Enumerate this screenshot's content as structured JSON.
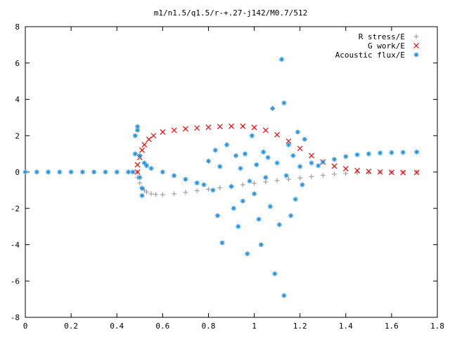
{
  "chart_data": {
    "type": "scatter",
    "title": "m1/n1.5/q1.5/r-+.27-j142/M0.7/512",
    "xlabel": "",
    "ylabel": "",
    "xlim": [
      0,
      1.8
    ],
    "ylim": [
      -8,
      8
    ],
    "x_ticks": [
      "0",
      "0.2",
      "0.4",
      "0.6",
      "0.8",
      "1",
      "1.2",
      "1.4",
      "1.6",
      "1.8"
    ],
    "y_ticks": [
      "8",
      "6",
      "4",
      "2",
      "0",
      "-2",
      "-4",
      "-6",
      "-8"
    ],
    "legend_position": "top-right",
    "grid": false,
    "series": [
      {
        "name": "R stress/E",
        "marker": "plus",
        "color": "#a0a0a0",
        "points": [
          [
            0.49,
            0.0
          ],
          [
            0.49,
            -0.3
          ],
          [
            0.5,
            -0.6
          ],
          [
            0.51,
            -0.85
          ],
          [
            0.52,
            -1.0
          ],
          [
            0.53,
            -1.1
          ],
          [
            0.55,
            -1.2
          ],
          [
            0.57,
            -1.24
          ],
          [
            0.6,
            -1.25
          ],
          [
            0.65,
            -1.2
          ],
          [
            0.7,
            -1.12
          ],
          [
            0.75,
            -1.03
          ],
          [
            0.8,
            -0.95
          ],
          [
            0.85,
            -0.87
          ],
          [
            0.9,
            -0.78
          ],
          [
            0.95,
            -0.7
          ],
          [
            1.0,
            -0.62
          ],
          [
            1.05,
            -0.54
          ],
          [
            1.1,
            -0.47
          ],
          [
            1.15,
            -0.4
          ],
          [
            1.2,
            -0.33
          ],
          [
            1.25,
            -0.25
          ],
          [
            1.3,
            -0.18
          ],
          [
            1.35,
            -0.12
          ],
          [
            1.4,
            -0.08
          ],
          [
            1.45,
            -0.04
          ],
          [
            1.5,
            -0.02
          ],
          [
            1.55,
            -0.01
          ],
          [
            1.6,
            0.0
          ],
          [
            1.65,
            0.0
          ],
          [
            1.71,
            0.0
          ]
        ]
      },
      {
        "name": "G work/E",
        "marker": "cross",
        "color": "#ff0000",
        "points": [
          [
            0.49,
            0.0
          ],
          [
            0.49,
            0.4
          ],
          [
            0.5,
            0.8
          ],
          [
            0.51,
            1.2
          ],
          [
            0.52,
            1.5
          ],
          [
            0.54,
            1.8
          ],
          [
            0.56,
            2.0
          ],
          [
            0.6,
            2.2
          ],
          [
            0.65,
            2.3
          ],
          [
            0.7,
            2.38
          ],
          [
            0.75,
            2.42
          ],
          [
            0.8,
            2.46
          ],
          [
            0.85,
            2.5
          ],
          [
            0.9,
            2.52
          ],
          [
            0.95,
            2.52
          ],
          [
            1.0,
            2.45
          ],
          [
            1.05,
            2.3
          ],
          [
            1.1,
            2.05
          ],
          [
            1.15,
            1.7
          ],
          [
            1.2,
            1.3
          ],
          [
            1.25,
            0.9
          ],
          [
            1.3,
            0.55
          ],
          [
            1.35,
            0.32
          ],
          [
            1.4,
            0.18
          ],
          [
            1.45,
            0.08
          ],
          [
            1.5,
            0.03
          ],
          [
            1.55,
            0.0
          ],
          [
            1.6,
            -0.02
          ],
          [
            1.65,
            -0.03
          ],
          [
            1.71,
            -0.02
          ]
        ]
      },
      {
        "name": "Acoustic flux/E",
        "marker": "star",
        "color": "#1e90e6",
        "points": [
          [
            0.0,
            0.0
          ],
          [
            0.05,
            0.0
          ],
          [
            0.1,
            0.0
          ],
          [
            0.15,
            0.0
          ],
          [
            0.2,
            0.0
          ],
          [
            0.25,
            0.0
          ],
          [
            0.3,
            0.0
          ],
          [
            0.35,
            0.0
          ],
          [
            0.4,
            0.0
          ],
          [
            0.45,
            0.0
          ],
          [
            0.47,
            0.0
          ],
          [
            0.48,
            1.0
          ],
          [
            0.48,
            2.0
          ],
          [
            0.49,
            2.3
          ],
          [
            0.49,
            2.5
          ],
          [
            0.5,
            0.9
          ],
          [
            0.5,
            -0.3
          ],
          [
            0.51,
            -0.9
          ],
          [
            0.51,
            -1.3
          ],
          [
            0.52,
            0.5
          ],
          [
            0.53,
            0.35
          ],
          [
            0.55,
            0.2
          ],
          [
            0.6,
            0.0
          ],
          [
            0.65,
            -0.2
          ],
          [
            0.7,
            -0.4
          ],
          [
            0.75,
            -0.6
          ],
          [
            0.78,
            -0.7
          ],
          [
            0.8,
            0.6
          ],
          [
            0.82,
            -1.0
          ],
          [
            0.83,
            1.2
          ],
          [
            0.84,
            -2.4
          ],
          [
            0.85,
            0.3
          ],
          [
            0.86,
            -3.9
          ],
          [
            0.88,
            1.5
          ],
          [
            0.9,
            -0.8
          ],
          [
            0.91,
            -2.0
          ],
          [
            0.92,
            0.9
          ],
          [
            0.93,
            -3.0
          ],
          [
            0.94,
            0.2
          ],
          [
            0.95,
            -1.6
          ],
          [
            0.96,
            1.0
          ],
          [
            0.97,
            -4.5
          ],
          [
            0.98,
            -0.5
          ],
          [
            0.99,
            2.0
          ],
          [
            1.0,
            -1.2
          ],
          [
            1.01,
            0.4
          ],
          [
            1.02,
            -2.6
          ],
          [
            1.03,
            -4.0
          ],
          [
            1.04,
            1.1
          ],
          [
            1.05,
            -0.3
          ],
          [
            1.06,
            0.8
          ],
          [
            1.07,
            -1.9
          ],
          [
            1.08,
            3.5
          ],
          [
            1.09,
            -5.6
          ],
          [
            1.1,
            0.5
          ],
          [
            1.11,
            -2.9
          ],
          [
            1.12,
            6.2
          ],
          [
            1.13,
            -6.8
          ],
          [
            1.13,
            3.8
          ],
          [
            1.14,
            -0.2
          ],
          [
            1.15,
            1.5
          ],
          [
            1.16,
            -2.4
          ],
          [
            1.17,
            0.9
          ],
          [
            1.18,
            -1.5
          ],
          [
            1.19,
            2.2
          ],
          [
            1.2,
            0.3
          ],
          [
            1.21,
            -0.7
          ],
          [
            1.22,
            1.8
          ],
          [
            1.25,
            0.5
          ],
          [
            1.28,
            0.35
          ],
          [
            1.3,
            0.55
          ],
          [
            1.35,
            0.7
          ],
          [
            1.4,
            0.85
          ],
          [
            1.45,
            0.95
          ],
          [
            1.5,
            1.0
          ],
          [
            1.55,
            1.05
          ],
          [
            1.6,
            1.07
          ],
          [
            1.65,
            1.08
          ],
          [
            1.71,
            1.1
          ]
        ]
      }
    ]
  }
}
